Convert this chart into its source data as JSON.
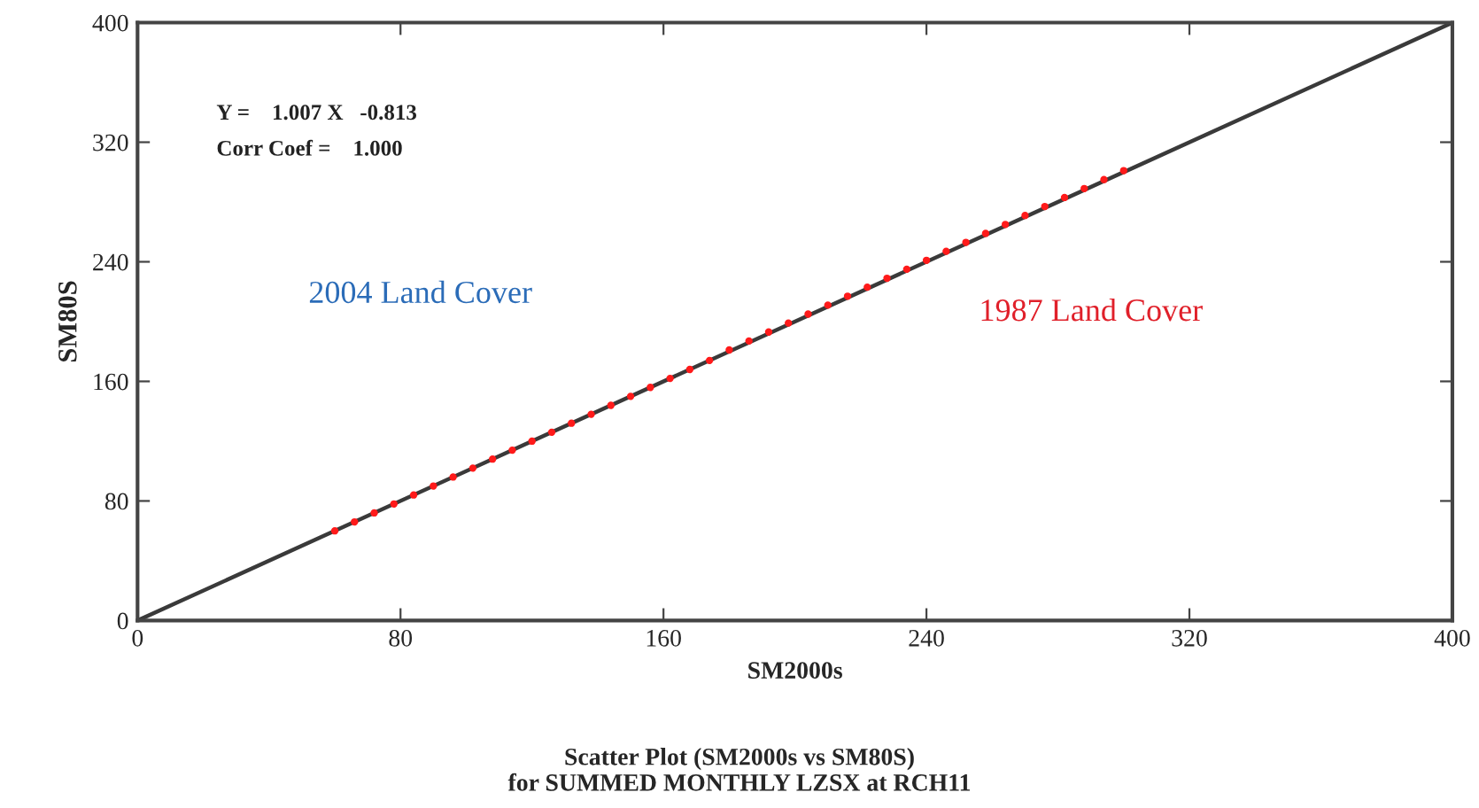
{
  "chart_data": {
    "type": "scatter",
    "title": "Scatter Plot (SM2000s vs SM80S)\nfor SUMMED MONTHLY LZSX at RCH11",
    "xlabel": "SM2000s",
    "ylabel": "SM80S",
    "xlim": [
      0,
      400
    ],
    "ylim": [
      0,
      400
    ],
    "xticks": [
      0,
      80,
      160,
      240,
      320,
      400
    ],
    "yticks": [
      0,
      80,
      160,
      240,
      320,
      400
    ],
    "grid": false,
    "legend": false,
    "marker": "circle",
    "annotations": [
      "Y =    1.007 X   -0.813",
      "Corr Coef =    1.000",
      "2004 Land Cover",
      "1987 Land Cover"
    ],
    "series": [
      {
        "type": "line",
        "color": "#3a3a3a",
        "line_style": "solid",
        "marker": "none",
        "x": [
          0,
          400
        ],
        "values": [
          0,
          400
        ]
      },
      {
        "color": "#ff1a1a",
        "x": [
          60,
          66,
          72,
          78,
          84,
          90,
          96,
          102,
          108,
          114,
          120,
          126,
          132,
          138,
          144,
          150,
          156,
          162,
          168,
          174,
          180,
          186,
          192,
          198,
          204,
          210,
          216,
          222,
          228,
          234,
          240,
          246,
          252,
          258,
          264,
          270,
          276,
          282,
          288,
          294,
          300
        ],
        "values": [
          60,
          66,
          72,
          78,
          84,
          90,
          96,
          102,
          108,
          114,
          120,
          126,
          132,
          138,
          144,
          150,
          156,
          162,
          168,
          174,
          181,
          187,
          193,
          199,
          205,
          211,
          217,
          223,
          229,
          235,
          241,
          247,
          253,
          259,
          265,
          271,
          277,
          283,
          289,
          295,
          301
        ]
      }
    ]
  }
}
